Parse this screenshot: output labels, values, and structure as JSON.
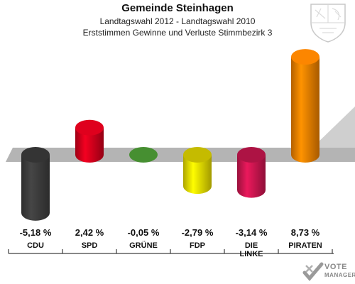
{
  "header": {
    "title": "Gemeinde Steinhagen",
    "subtitle1": "Landtagswahl 2012 - Landtagswahl 2010",
    "subtitle2": "Erststimmen Gewinne und Verluste Stimmbezirk 3"
  },
  "logo": {
    "line1": "VOTE",
    "line2": "MANAGER"
  },
  "colors": {
    "CDU": "#3d3d3d",
    "SPD": "#d4001c",
    "GRUENE": "#52a83a",
    "FDP": "#e8dc00",
    "LINKE": "#cc1650",
    "PIRATEN": "#f08000",
    "band": "#b4b4b4"
  },
  "chart_data": {
    "type": "bar",
    "categories": [
      "CDU",
      "SPD",
      "GRÜNE",
      "FDP",
      "DIE LINKE",
      "PIRATEN"
    ],
    "category_lines": [
      [
        "CDU"
      ],
      [
        "SPD"
      ],
      [
        "GRÜNE"
      ],
      [
        "FDP"
      ],
      [
        "DIE",
        "LINKE"
      ],
      [
        "PIRATEN"
      ]
    ],
    "values": [
      -5.18,
      2.42,
      -0.05,
      -2.79,
      -3.14,
      8.73
    ],
    "value_labels": [
      "-5,18 %",
      "2,42 %",
      "-0,05 %",
      "-2,79 %",
      "-3,14 %",
      "8,73 %"
    ],
    "ylim": [
      -6,
      10
    ],
    "title": "Gemeinde Steinhagen",
    "xlabel": "",
    "ylabel": ""
  }
}
